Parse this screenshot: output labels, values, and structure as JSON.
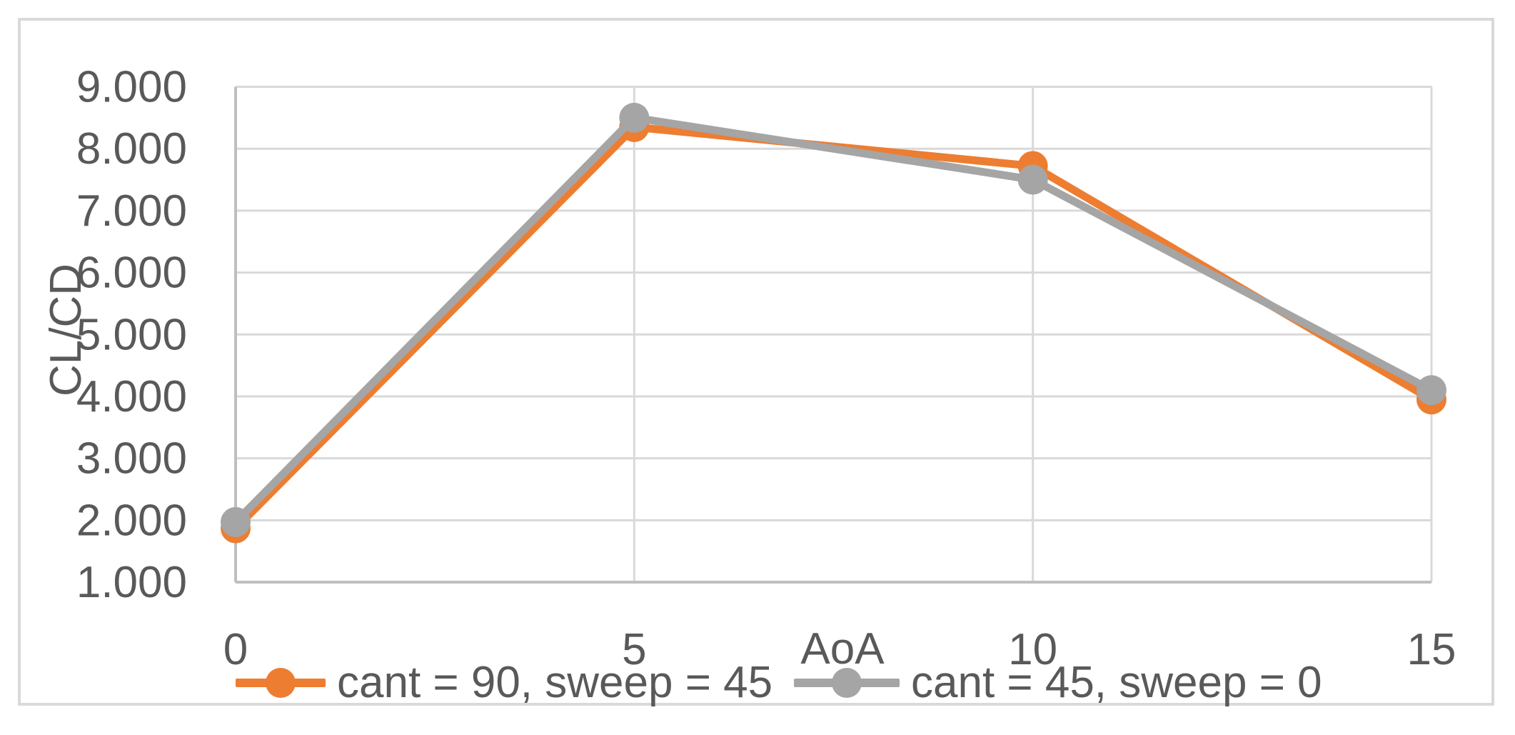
{
  "chart_data": {
    "type": "line",
    "title": "",
    "xlabel": "AoA",
    "ylabel": "CL/CD",
    "x": [
      0,
      5,
      10,
      15
    ],
    "series": [
      {
        "name": "cant = 90, sweep = 45",
        "color": "#ED7D31",
        "values": [
          1.87,
          8.35,
          7.72,
          3.95
        ]
      },
      {
        "name": "cant = 45, sweep = 0",
        "color": "#A5A5A5",
        "values": [
          1.97,
          8.5,
          7.5,
          4.1
        ]
      }
    ],
    "xlim": [
      0,
      15
    ],
    "ylim": [
      1,
      9
    ],
    "x_major_unit": 5,
    "y_major_unit": 1,
    "xticks": [
      "0",
      "5",
      "10",
      "15"
    ],
    "yticks": [
      "1.000",
      "2.000",
      "3.000",
      "4.000",
      "5.000",
      "6.000",
      "7.000",
      "8.000",
      "9.000"
    ],
    "grid": true,
    "legend_position": "bottom",
    "marker_shape": "circle",
    "colors": {
      "tick_text": "#595959",
      "axis_title_text": "#595959",
      "gridline": "#D9D9D9",
      "axis_line": "#BFBFBF",
      "chart_border": "#D9D9D9",
      "background": "#FFFFFF"
    }
  }
}
